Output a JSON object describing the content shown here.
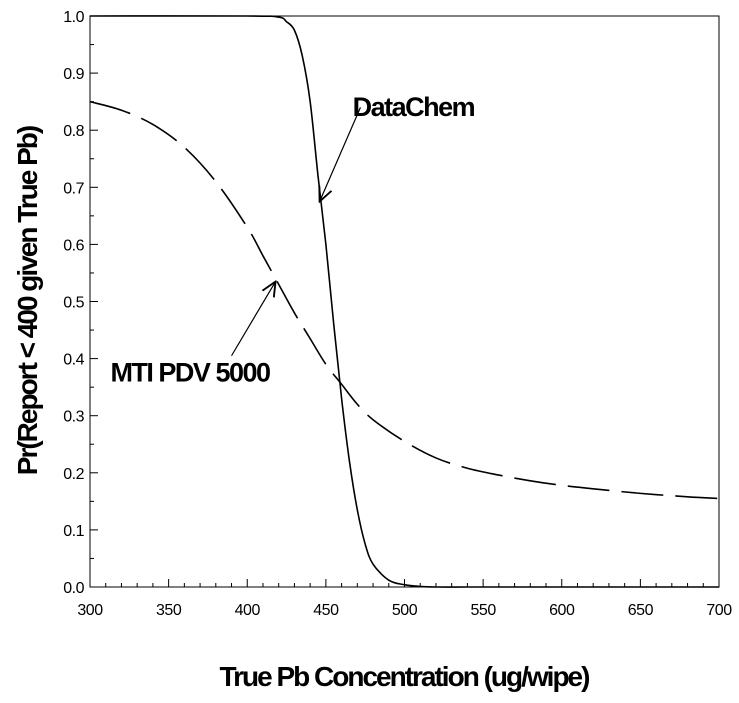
{
  "chart_data": {
    "type": "line",
    "title": "",
    "xlabel": "True Pb Concentration (ug/wipe)",
    "ylabel": "Pr(Report < 400 given True Pb)",
    "xlim": [
      300,
      700
    ],
    "ylim": [
      0.0,
      1.0
    ],
    "x_ticks": [
      300,
      350,
      400,
      450,
      500,
      550,
      600,
      650,
      700
    ],
    "x_tick_labels": [
      "300",
      "350",
      "400",
      "450",
      "500",
      "550",
      "600",
      "650",
      "700"
    ],
    "y_ticks": [
      0.0,
      0.1,
      0.2,
      0.3,
      0.4,
      0.5,
      0.6,
      0.7,
      0.8,
      0.9,
      1.0
    ],
    "y_tick_labels": [
      "0.0",
      "0.1",
      "0.2",
      "0.3",
      "0.4",
      "0.5",
      "0.6",
      "0.7",
      "0.8",
      "0.9",
      "1.0"
    ],
    "x_minor_step": 10,
    "y_minor_step": 0.05,
    "grid": false,
    "series": [
      {
        "name": "DataChem",
        "line_style": "solid",
        "color": "#000000",
        "x": [
          300,
          400,
          420,
          425,
          430,
          435,
          440,
          445,
          450,
          455,
          460,
          465,
          470,
          475,
          480,
          490,
          500,
          510,
          520,
          540,
          560,
          600,
          650,
          700
        ],
        "y": [
          1.0,
          1.0,
          0.998,
          0.99,
          0.975,
          0.93,
          0.85,
          0.72,
          0.6,
          0.46,
          0.33,
          0.22,
          0.135,
          0.075,
          0.04,
          0.012,
          0.004,
          0.001,
          0.0,
          0.0,
          0.0,
          0.0,
          0.0,
          0.0
        ]
      },
      {
        "name": "MTI PDV 5000",
        "line_style": "dashed",
        "color": "#000000",
        "x": [
          300,
          320,
          340,
          360,
          380,
          400,
          410,
          420,
          430,
          440,
          450,
          460,
          470,
          480,
          500,
          520,
          540,
          560,
          580,
          600,
          620,
          650,
          680,
          700
        ],
        "y": [
          0.85,
          0.835,
          0.81,
          0.77,
          0.71,
          0.63,
          0.58,
          0.53,
          0.48,
          0.435,
          0.39,
          0.355,
          0.32,
          0.293,
          0.255,
          0.226,
          0.208,
          0.196,
          0.186,
          0.178,
          0.172,
          0.164,
          0.158,
          0.155
        ]
      }
    ],
    "annotations": [
      {
        "text": "DataChem",
        "arrow_from": [
          472,
          0.84
        ],
        "arrow_to": [
          446,
          0.675
        ],
        "label_pos": [
          467,
          0.825
        ]
      },
      {
        "text": "MTI PDV 5000",
        "arrow_from": [
          390,
          0.405
        ],
        "arrow_to": [
          418,
          0.535
        ],
        "label_pos": [
          313,
          0.36
        ]
      }
    ]
  }
}
